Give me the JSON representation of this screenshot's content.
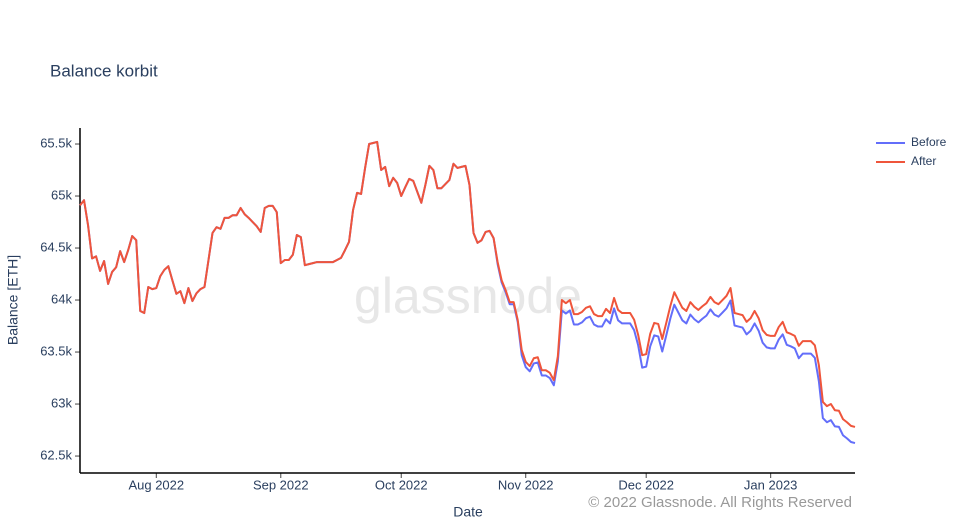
{
  "chart_data": {
    "type": "line",
    "title": "Balance korbit",
    "xlabel": "Date",
    "ylabel": "Balance [ETH]",
    "watermark": "glassnode",
    "copyright": "© 2022 Glassnode. All Rights Reserved",
    "legend": "right",
    "x": [
      "2022-07-13",
      "2022-07-14",
      "2022-07-15",
      "2022-07-16",
      "2022-07-17",
      "2022-07-18",
      "2022-07-19",
      "2022-07-20",
      "2022-07-21",
      "2022-07-22",
      "2022-07-23",
      "2022-07-24",
      "2022-07-25",
      "2022-07-26",
      "2022-07-27",
      "2022-07-28",
      "2022-07-29",
      "2022-07-30",
      "2022-07-31",
      "2022-08-01",
      "2022-08-02",
      "2022-08-03",
      "2022-08-04",
      "2022-08-05",
      "2022-08-06",
      "2022-08-07",
      "2022-08-08",
      "2022-08-09",
      "2022-08-10",
      "2022-08-11",
      "2022-08-12",
      "2022-08-13",
      "2022-08-14",
      "2022-08-15",
      "2022-08-16",
      "2022-08-17",
      "2022-08-18",
      "2022-08-19",
      "2022-08-20",
      "2022-08-21",
      "2022-08-22",
      "2022-08-23",
      "2022-08-24",
      "2022-08-25",
      "2022-08-26",
      "2022-08-27",
      "2022-08-28",
      "2022-08-29",
      "2022-08-30",
      "2022-08-31",
      "2022-09-01",
      "2022-09-02",
      "2022-09-03",
      "2022-09-04",
      "2022-09-05",
      "2022-09-06",
      "2022-09-07",
      "2022-09-08",
      "2022-09-09",
      "2022-09-10",
      "2022-09-11",
      "2022-09-12",
      "2022-09-13",
      "2022-09-14",
      "2022-09-15",
      "2022-09-16",
      "2022-09-17",
      "2022-09-18",
      "2022-09-19",
      "2022-09-20",
      "2022-09-21",
      "2022-09-22",
      "2022-09-23",
      "2022-09-24",
      "2022-09-25",
      "2022-09-26",
      "2022-09-27",
      "2022-09-28",
      "2022-09-29",
      "2022-09-30",
      "2022-10-01",
      "2022-10-02",
      "2022-10-03",
      "2022-10-04",
      "2022-10-05",
      "2022-10-06",
      "2022-10-07",
      "2022-10-08",
      "2022-10-09",
      "2022-10-10",
      "2022-10-11",
      "2022-10-12",
      "2022-10-13",
      "2022-10-14",
      "2022-10-15",
      "2022-10-16",
      "2022-10-17",
      "2022-10-18",
      "2022-10-19",
      "2022-10-20",
      "2022-10-21",
      "2022-10-22",
      "2022-10-23",
      "2022-10-24",
      "2022-10-25",
      "2022-10-26",
      "2022-10-27",
      "2022-10-28",
      "2022-10-29",
      "2022-10-30",
      "2022-10-31",
      "2022-11-01",
      "2022-11-02",
      "2022-11-03",
      "2022-11-04",
      "2022-11-05",
      "2022-11-06",
      "2022-11-07",
      "2022-11-08",
      "2022-11-09",
      "2022-11-10",
      "2022-11-11",
      "2022-11-12",
      "2022-11-13",
      "2022-11-14",
      "2022-11-15",
      "2022-11-16",
      "2022-11-17",
      "2022-11-18",
      "2022-11-19",
      "2022-11-20",
      "2022-11-21",
      "2022-11-22",
      "2022-11-23",
      "2022-11-24",
      "2022-11-25",
      "2022-11-26",
      "2022-11-27",
      "2022-11-28",
      "2022-11-29",
      "2022-11-30",
      "2022-12-01",
      "2022-12-02",
      "2022-12-03",
      "2022-12-04",
      "2022-12-05",
      "2022-12-06",
      "2022-12-07",
      "2022-12-08",
      "2022-12-09",
      "2022-12-10",
      "2022-12-11",
      "2022-12-12",
      "2022-12-13",
      "2022-12-14",
      "2022-12-15",
      "2022-12-16",
      "2022-12-17",
      "2022-12-18",
      "2022-12-19",
      "2022-12-20",
      "2022-12-21",
      "2022-12-22",
      "2022-12-23",
      "2022-12-24",
      "2022-12-25",
      "2022-12-26",
      "2022-12-27",
      "2022-12-28",
      "2022-12-29",
      "2022-12-30",
      "2022-12-31",
      "2023-01-01",
      "2023-01-02",
      "2023-01-03",
      "2023-01-04",
      "2023-01-05",
      "2023-01-06",
      "2023-01-07",
      "2023-01-08",
      "2023-01-09",
      "2023-01-10",
      "2023-01-11",
      "2023-01-12",
      "2023-01-13",
      "2023-01-14",
      "2023-01-15",
      "2023-01-16",
      "2023-01-17",
      "2023-01-18",
      "2023-01-19",
      "2023-01-20",
      "2023-01-21",
      "2023-01-22"
    ],
    "series": [
      {
        "name": "Before",
        "color": "#636efa",
        "values": [
          64910,
          64960,
          64720,
          64400,
          64420,
          64280,
          64375,
          64155,
          64270,
          64315,
          64470,
          64365,
          64480,
          64615,
          64575,
          63895,
          63875,
          64125,
          64105,
          64115,
          64230,
          64290,
          64325,
          64190,
          64060,
          64085,
          63970,
          64115,
          63990,
          64065,
          64105,
          64125,
          64385,
          64645,
          64700,
          64685,
          64790,
          64790,
          64815,
          64815,
          64885,
          64825,
          64790,
          64750,
          64710,
          64655,
          64885,
          64905,
          64905,
          64845,
          64355,
          64385,
          64385,
          64435,
          64625,
          64605,
          64335,
          64345,
          64355,
          64365,
          64365,
          64365,
          64365,
          64365,
          64385,
          64405,
          64480,
          64560,
          64865,
          65030,
          65020,
          65270,
          65500,
          65510,
          65520,
          65250,
          65280,
          65095,
          65175,
          65125,
          65000,
          65085,
          65165,
          65145,
          65040,
          64935,
          65105,
          65290,
          65250,
          65075,
          65075,
          65115,
          65155,
          65310,
          65270,
          65280,
          65290,
          65105,
          64645,
          64550,
          64575,
          64655,
          64665,
          64595,
          64345,
          64170,
          64075,
          63960,
          63960,
          63790,
          63470,
          63355,
          63315,
          63390,
          63400,
          63275,
          63275,
          63250,
          63180,
          63410,
          63900,
          63870,
          63900,
          63765,
          63765,
          63785,
          63825,
          63840,
          63765,
          63745,
          63745,
          63815,
          63775,
          63920,
          63805,
          63775,
          63775,
          63775,
          63710,
          63565,
          63350,
          63360,
          63555,
          63660,
          63650,
          63505,
          63660,
          63820,
          63955,
          63880,
          63805,
          63775,
          63860,
          63815,
          63785,
          63820,
          63850,
          63910,
          63860,
          63840,
          63880,
          63920,
          63995,
          63755,
          63745,
          63735,
          63670,
          63705,
          63775,
          63705,
          63590,
          63545,
          63535,
          63535,
          63620,
          63670,
          63570,
          63555,
          63535,
          63440,
          63485,
          63485,
          63485,
          63445,
          63220,
          62865,
          62825,
          62845,
          62785,
          62780,
          62700,
          62670,
          62635,
          62625
        ]
      },
      {
        "name": "After",
        "color": "#ef553b",
        "values": [
          64910,
          64960,
          64720,
          64400,
          64420,
          64280,
          64375,
          64155,
          64270,
          64315,
          64470,
          64365,
          64480,
          64615,
          64575,
          63895,
          63875,
          64125,
          64105,
          64115,
          64230,
          64290,
          64325,
          64190,
          64060,
          64085,
          63970,
          64115,
          63990,
          64065,
          64105,
          64125,
          64385,
          64645,
          64700,
          64685,
          64790,
          64790,
          64815,
          64815,
          64885,
          64825,
          64790,
          64750,
          64710,
          64655,
          64885,
          64905,
          64905,
          64845,
          64355,
          64385,
          64385,
          64435,
          64625,
          64605,
          64335,
          64345,
          64355,
          64365,
          64365,
          64365,
          64365,
          64365,
          64385,
          64405,
          64480,
          64560,
          64865,
          65030,
          65020,
          65270,
          65500,
          65510,
          65520,
          65250,
          65280,
          65095,
          65175,
          65125,
          65000,
          65085,
          65165,
          65145,
          65040,
          64935,
          65105,
          65290,
          65250,
          65075,
          65075,
          65115,
          65155,
          65310,
          65270,
          65280,
          65290,
          65105,
          64645,
          64550,
          64575,
          64655,
          64665,
          64595,
          64365,
          64190,
          64095,
          63980,
          63980,
          63810,
          63520,
          63405,
          63365,
          63440,
          63450,
          63325,
          63325,
          63300,
          63230,
          63460,
          64000,
          63970,
          64000,
          63865,
          63865,
          63885,
          63925,
          63940,
          63865,
          63845,
          63845,
          63915,
          63875,
          64020,
          63905,
          63875,
          63875,
          63875,
          63810,
          63665,
          63470,
          63480,
          63675,
          63780,
          63770,
          63625,
          63780,
          63940,
          64075,
          64000,
          63925,
          63895,
          63980,
          63935,
          63905,
          63940,
          63970,
          64030,
          63980,
          63960,
          64000,
          64040,
          64115,
          63875,
          63865,
          63855,
          63790,
          63825,
          63895,
          63825,
          63710,
          63665,
          63655,
          63655,
          63740,
          63790,
          63690,
          63675,
          63655,
          63560,
          63605,
          63605,
          63605,
          63565,
          63375,
          63020,
          62980,
          63000,
          62940,
          62935,
          62855,
          62825,
          62790,
          62780
        ]
      }
    ],
    "xlim": [
      "2022-07-13",
      "2023-01-22"
    ],
    "xticks": [
      {
        "value": "2022-08-01",
        "label": "Aug 2022"
      },
      {
        "value": "2022-09-01",
        "label": "Sep 2022"
      },
      {
        "value": "2022-10-01",
        "label": "Oct 2022"
      },
      {
        "value": "2022-11-01",
        "label": "Nov 2022"
      },
      {
        "value": "2022-12-01",
        "label": "Dec 2022"
      },
      {
        "value": "2023-01-01",
        "label": "Jan 2023"
      }
    ],
    "ylim": [
      62337,
      65654
    ],
    "yticks": [
      {
        "value": 62500,
        "label": "62.5k"
      },
      {
        "value": 63000,
        "label": "63k"
      },
      {
        "value": 63500,
        "label": "63.5k"
      },
      {
        "value": 64000,
        "label": "64k"
      },
      {
        "value": 64500,
        "label": "64.5k"
      },
      {
        "value": 65000,
        "label": "65k"
      },
      {
        "value": 65500,
        "label": "65.5k"
      }
    ],
    "grid": false
  }
}
